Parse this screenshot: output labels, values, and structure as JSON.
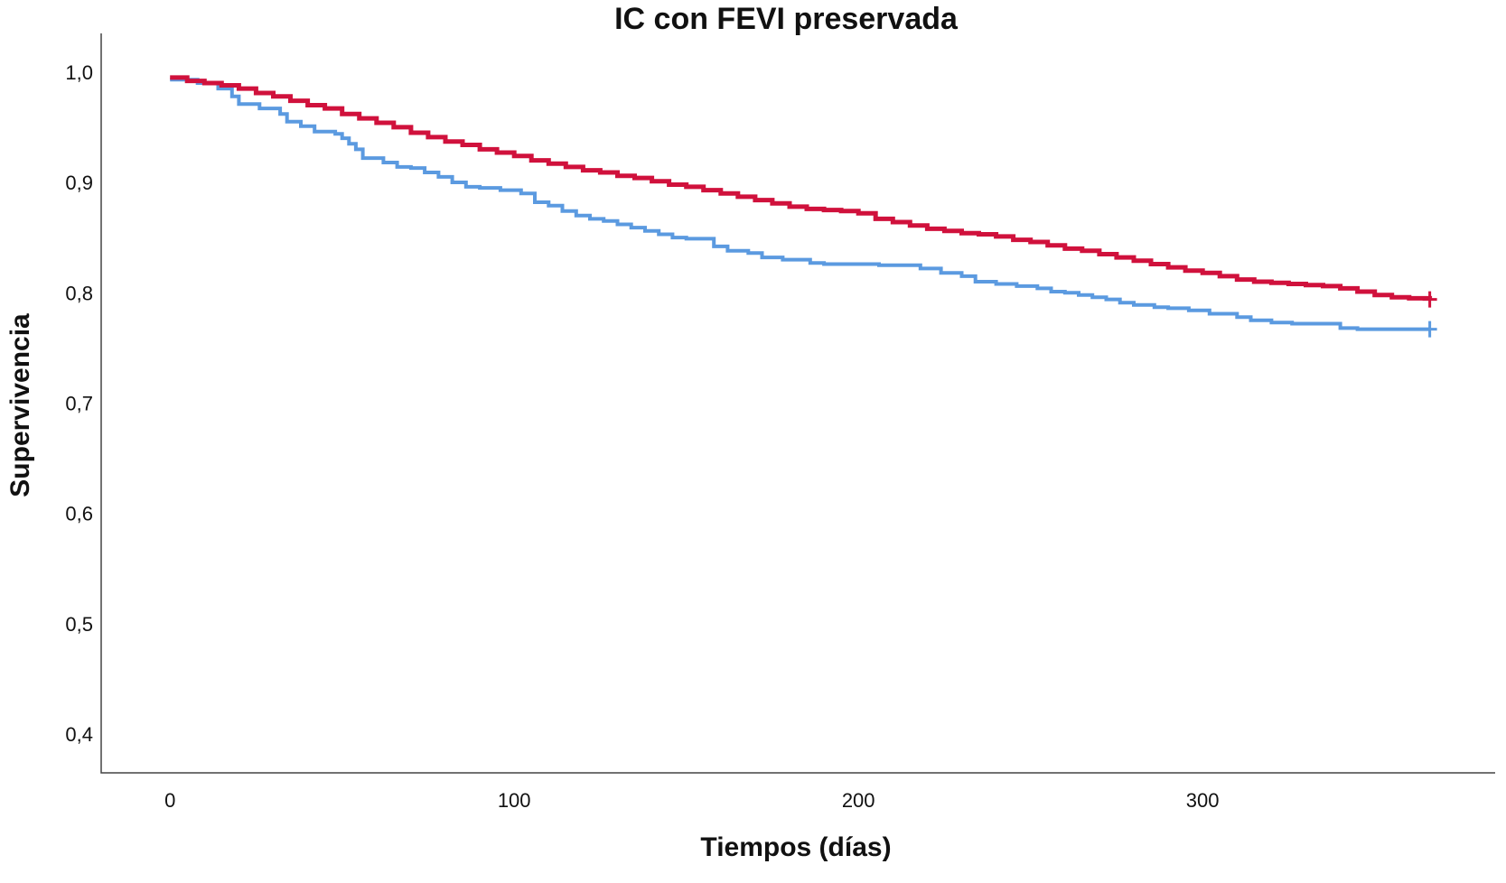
{
  "chart_data": {
    "type": "line",
    "title": "IC con FEVI preservada",
    "xlabel": "Tiempos (días)",
    "ylabel": "Supervivencia",
    "xlim": [
      -20,
      385
    ],
    "ylim": [
      0.365,
      1.035
    ],
    "x_ticks": [
      0,
      100,
      200,
      300
    ],
    "x_tick_labels": [
      "0",
      "100",
      "200",
      "300"
    ],
    "y_ticks": [
      0.4,
      0.5,
      0.6,
      0.7,
      0.8,
      0.9,
      1.0
    ],
    "y_tick_labels": [
      "0,4",
      "0,5",
      "0,6",
      "0,7",
      "0,8",
      "0,9",
      "1,0"
    ],
    "grid": false,
    "step": true,
    "series": [
      {
        "color": "#5b9ae0",
        "censor_mark": true,
        "points": [
          [
            0,
            0.993
          ],
          [
            8,
            0.99
          ],
          [
            14,
            0.985
          ],
          [
            18,
            0.978
          ],
          [
            20,
            0.971
          ],
          [
            26,
            0.967
          ],
          [
            32,
            0.962
          ],
          [
            34,
            0.955
          ],
          [
            38,
            0.951
          ],
          [
            42,
            0.946
          ],
          [
            48,
            0.944
          ],
          [
            50,
            0.94
          ],
          [
            52,
            0.935
          ],
          [
            54,
            0.93
          ],
          [
            56,
            0.922
          ],
          [
            62,
            0.918
          ],
          [
            66,
            0.914
          ],
          [
            70,
            0.913
          ],
          [
            74,
            0.909
          ],
          [
            78,
            0.905
          ],
          [
            82,
            0.9
          ],
          [
            86,
            0.896
          ],
          [
            90,
            0.895
          ],
          [
            96,
            0.893
          ],
          [
            102,
            0.89
          ],
          [
            106,
            0.882
          ],
          [
            110,
            0.879
          ],
          [
            114,
            0.874
          ],
          [
            118,
            0.87
          ],
          [
            122,
            0.867
          ],
          [
            126,
            0.865
          ],
          [
            130,
            0.862
          ],
          [
            134,
            0.859
          ],
          [
            138,
            0.856
          ],
          [
            142,
            0.853
          ],
          [
            146,
            0.85
          ],
          [
            150,
            0.849
          ],
          [
            158,
            0.842
          ],
          [
            162,
            0.838
          ],
          [
            168,
            0.836
          ],
          [
            172,
            0.832
          ],
          [
            178,
            0.83
          ],
          [
            186,
            0.827
          ],
          [
            190,
            0.826
          ],
          [
            200,
            0.826
          ],
          [
            206,
            0.825
          ],
          [
            212,
            0.825
          ],
          [
            218,
            0.822
          ],
          [
            224,
            0.818
          ],
          [
            230,
            0.815
          ],
          [
            234,
            0.81
          ],
          [
            240,
            0.808
          ],
          [
            246,
            0.806
          ],
          [
            252,
            0.804
          ],
          [
            256,
            0.801
          ],
          [
            260,
            0.8
          ],
          [
            264,
            0.798
          ],
          [
            268,
            0.796
          ],
          [
            272,
            0.794
          ],
          [
            276,
            0.791
          ],
          [
            280,
            0.789
          ],
          [
            286,
            0.787
          ],
          [
            290,
            0.786
          ],
          [
            296,
            0.784
          ],
          [
            302,
            0.781
          ],
          [
            306,
            0.781
          ],
          [
            310,
            0.778
          ],
          [
            314,
            0.775
          ],
          [
            320,
            0.773
          ],
          [
            326,
            0.772
          ],
          [
            334,
            0.772
          ],
          [
            340,
            0.768
          ],
          [
            345,
            0.767
          ],
          [
            351,
            0.767
          ],
          [
            366,
            0.767
          ]
        ]
      },
      {
        "color": "#d0113c",
        "censor_mark": true,
        "points": [
          [
            0,
            0.995
          ],
          [
            5,
            0.992
          ],
          [
            10,
            0.99
          ],
          [
            15,
            0.988
          ],
          [
            20,
            0.985
          ],
          [
            25,
            0.981
          ],
          [
            30,
            0.978
          ],
          [
            35,
            0.974
          ],
          [
            40,
            0.97
          ],
          [
            45,
            0.967
          ],
          [
            50,
            0.962
          ],
          [
            55,
            0.958
          ],
          [
            60,
            0.954
          ],
          [
            65,
            0.95
          ],
          [
            70,
            0.945
          ],
          [
            75,
            0.941
          ],
          [
            80,
            0.937
          ],
          [
            85,
            0.934
          ],
          [
            90,
            0.93
          ],
          [
            95,
            0.927
          ],
          [
            100,
            0.924
          ],
          [
            105,
            0.92
          ],
          [
            110,
            0.917
          ],
          [
            115,
            0.914
          ],
          [
            120,
            0.911
          ],
          [
            125,
            0.909
          ],
          [
            130,
            0.906
          ],
          [
            135,
            0.904
          ],
          [
            140,
            0.901
          ],
          [
            145,
            0.898
          ],
          [
            150,
            0.896
          ],
          [
            155,
            0.893
          ],
          [
            160,
            0.89
          ],
          [
            165,
            0.887
          ],
          [
            170,
            0.884
          ],
          [
            175,
            0.881
          ],
          [
            180,
            0.878
          ],
          [
            185,
            0.876
          ],
          [
            190,
            0.875
          ],
          [
            195,
            0.874
          ],
          [
            200,
            0.872
          ],
          [
            205,
            0.867
          ],
          [
            210,
            0.864
          ],
          [
            215,
            0.861
          ],
          [
            220,
            0.858
          ],
          [
            225,
            0.856
          ],
          [
            230,
            0.854
          ],
          [
            235,
            0.853
          ],
          [
            240,
            0.851
          ],
          [
            245,
            0.848
          ],
          [
            250,
            0.846
          ],
          [
            255,
            0.843
          ],
          [
            260,
            0.84
          ],
          [
            265,
            0.838
          ],
          [
            270,
            0.835
          ],
          [
            275,
            0.832
          ],
          [
            280,
            0.829
          ],
          [
            285,
            0.826
          ],
          [
            290,
            0.823
          ],
          [
            295,
            0.82
          ],
          [
            300,
            0.818
          ],
          [
            305,
            0.815
          ],
          [
            310,
            0.812
          ],
          [
            315,
            0.81
          ],
          [
            320,
            0.809
          ],
          [
            325,
            0.808
          ],
          [
            330,
            0.807
          ],
          [
            335,
            0.806
          ],
          [
            340,
            0.804
          ],
          [
            345,
            0.801
          ],
          [
            350,
            0.798
          ],
          [
            355,
            0.796
          ],
          [
            360,
            0.795
          ],
          [
            366,
            0.794
          ]
        ]
      }
    ]
  }
}
